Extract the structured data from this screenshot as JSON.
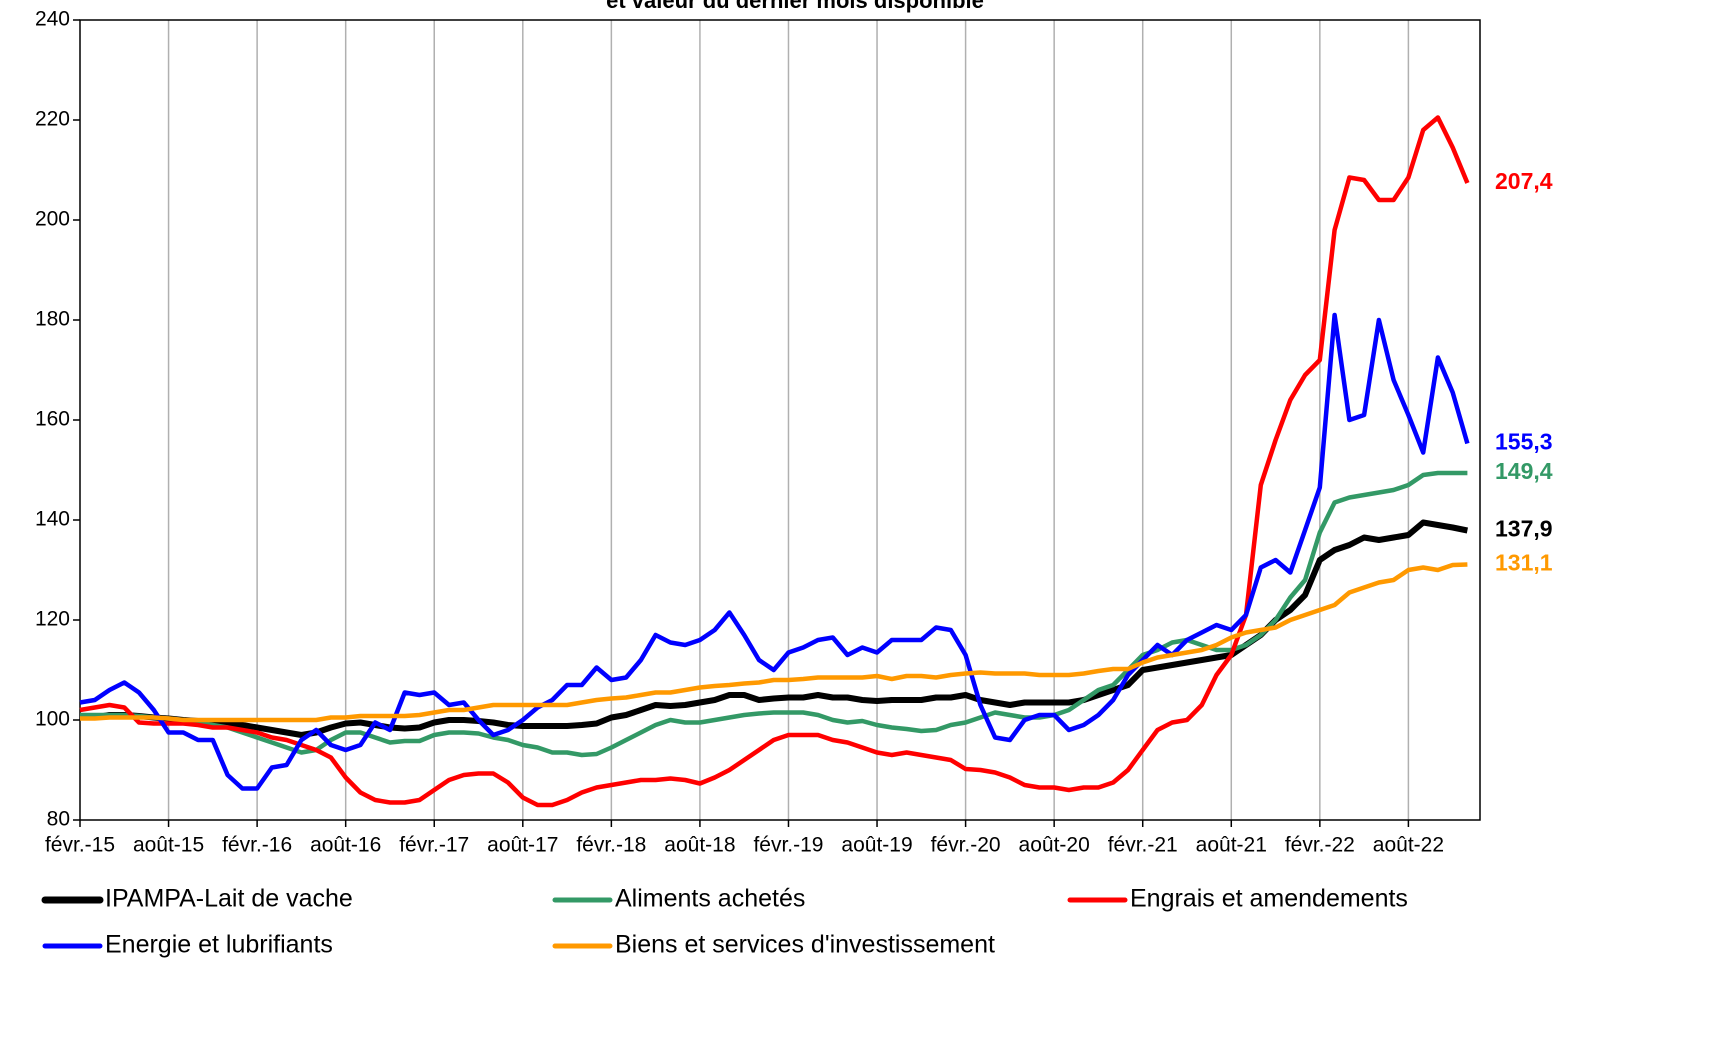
{
  "chart_data": {
    "type": "line",
    "title": "et valeur du dernier mois disponible",
    "categories": [
      "févr.-15",
      null,
      null,
      null,
      null,
      null,
      "août-15",
      null,
      null,
      null,
      null,
      null,
      "févr.-16",
      null,
      null,
      null,
      null,
      null,
      "août-16",
      null,
      null,
      null,
      null,
      null,
      "févr.-17",
      null,
      null,
      null,
      null,
      null,
      "août-17",
      null,
      null,
      null,
      null,
      null,
      "févr.-18",
      null,
      null,
      null,
      null,
      null,
      "août-18",
      null,
      null,
      null,
      null,
      null,
      "févr.-19",
      null,
      null,
      null,
      null,
      null,
      "août-19",
      null,
      null,
      null,
      null,
      null,
      "févr.-20",
      null,
      null,
      null,
      null,
      null,
      "août-20",
      null,
      null,
      null,
      null,
      null,
      "févr.-21",
      null,
      null,
      null,
      null,
      null,
      "août-21",
      null,
      null,
      null,
      null,
      null,
      "févr.-22",
      null,
      null,
      null,
      null,
      null,
      "août-22",
      null,
      null,
      null,
      null
    ],
    "ylim": [
      80,
      240
    ],
    "yticks": [
      80,
      100,
      120,
      140,
      160,
      180,
      200,
      220,
      240
    ],
    "grid": "x",
    "legend": "bottom",
    "series": [
      {
        "name": "IPAMPA-Lait de vache",
        "color": "#000000",
        "values": [
          100.5,
          100.5,
          101,
          101,
          100.8,
          100.5,
          100.3,
          100,
          99.8,
          99.5,
          99.3,
          99,
          98.5,
          98,
          97.5,
          97,
          97.5,
          98.5,
          99.3,
          99.5,
          99,
          98.5,
          98.3,
          98.5,
          99.5,
          100,
          100,
          99.8,
          99.5,
          99,
          98.8,
          98.8,
          98.8,
          98.8,
          99,
          99.3,
          100.5,
          101,
          102,
          103,
          102.8,
          103,
          103.5,
          104,
          105,
          105,
          104,
          104.3,
          104.5,
          104.5,
          105,
          104.5,
          104.5,
          104,
          103.8,
          104,
          104,
          104,
          104.5,
          104.5,
          105,
          104,
          103.5,
          103,
          103.5,
          103.5,
          103.5,
          103.5,
          104,
          105,
          106,
          107,
          110,
          110.5,
          111,
          111.5,
          112,
          112.5,
          113,
          115,
          117,
          120,
          122,
          125,
          132,
          134,
          135,
          136.5,
          136,
          136.5,
          137,
          139.5,
          139,
          138.5,
          137.9
        ],
        "value_labels": [
          null,
          null,
          null,
          null,
          null,
          null,
          null,
          null,
          null,
          null,
          null,
          null,
          null,
          null,
          null,
          null,
          null,
          null,
          null,
          null,
          null,
          null,
          null,
          null,
          null,
          null,
          null,
          null,
          null,
          null,
          null,
          null,
          null,
          null,
          null,
          null,
          null,
          null,
          null,
          null,
          null,
          null,
          null,
          null,
          null,
          null,
          null,
          null,
          null,
          null,
          null,
          null,
          null,
          null,
          null,
          null,
          null,
          null,
          null,
          null,
          null,
          null,
          null,
          null,
          null,
          null,
          null,
          null,
          null,
          null,
          null,
          null,
          null,
          null,
          null,
          null,
          null,
          null,
          null,
          null,
          null,
          null,
          null,
          null,
          null,
          null,
          null,
          null,
          null,
          null,
          null,
          null,
          null,
          null,
          "137,9"
        ]
      },
      {
        "name": "Aliments achetés",
        "color": "#339966",
        "values": [
          101,
          101,
          101,
          101,
          100.8,
          100.5,
          100.3,
          100,
          99.5,
          99,
          98.5,
          97.5,
          96.5,
          95.5,
          94.5,
          93.5,
          94,
          96,
          97.5,
          97.5,
          96.5,
          95.5,
          95.8,
          95.8,
          97,
          97.5,
          97.5,
          97.3,
          96.5,
          96,
          95,
          94.5,
          93.5,
          93.5,
          93,
          93.2,
          94.5,
          96,
          97.5,
          99,
          100,
          99.5,
          99.5,
          100,
          100.5,
          101,
          101.3,
          101.5,
          101.5,
          101.5,
          101,
          100,
          99.5,
          99.8,
          99,
          98.5,
          98.2,
          97.8,
          98,
          99,
          99.5,
          100.5,
          101.5,
          101,
          100.5,
          100.5,
          101,
          102,
          104,
          106,
          107,
          110,
          113,
          114,
          115.5,
          116,
          115,
          114,
          114,
          115,
          117,
          120,
          124.5,
          128,
          137.5,
          143.5,
          144.5,
          145,
          145.5,
          146,
          147,
          149,
          149.4,
          149.4,
          149.4
        ],
        "value_labels": [
          null,
          null,
          null,
          null,
          null,
          null,
          null,
          null,
          null,
          null,
          null,
          null,
          null,
          null,
          null,
          null,
          null,
          null,
          null,
          null,
          null,
          null,
          null,
          null,
          null,
          null,
          null,
          null,
          null,
          null,
          null,
          null,
          null,
          null,
          null,
          null,
          null,
          null,
          null,
          null,
          null,
          null,
          null,
          null,
          null,
          null,
          null,
          null,
          null,
          null,
          null,
          null,
          null,
          null,
          null,
          null,
          null,
          null,
          null,
          null,
          null,
          null,
          null,
          null,
          null,
          null,
          null,
          null,
          null,
          null,
          null,
          null,
          null,
          null,
          null,
          null,
          null,
          null,
          null,
          null,
          null,
          null,
          null,
          null,
          null,
          null,
          null,
          null,
          null,
          null,
          null,
          null,
          null,
          null,
          "149,4"
        ]
      },
      {
        "name": "Engrais et amendements",
        "color": "#ff0000",
        "values": [
          102,
          102.5,
          103,
          102.5,
          99.5,
          99.3,
          99.3,
          99.3,
          99,
          98.5,
          98.5,
          98,
          97.5,
          96.5,
          96,
          95,
          94,
          92.5,
          88.5,
          85.5,
          84,
          83.5,
          83.5,
          84,
          86,
          88,
          89,
          89.3,
          89.3,
          87.5,
          84.5,
          83,
          83,
          84,
          85.5,
          86.5,
          87,
          87.5,
          88,
          88,
          88.3,
          88,
          87.3,
          88.5,
          90,
          92,
          94,
          96,
          97,
          97,
          97,
          96,
          95.5,
          94.5,
          93.5,
          93,
          93.5,
          93,
          92.5,
          92,
          90.2,
          90,
          89.5,
          88.5,
          87,
          86.5,
          86.5,
          86,
          86.5,
          86.5,
          87.5,
          90,
          94,
          98,
          99.5,
          100,
          103,
          109,
          113,
          121,
          147,
          156,
          164,
          169,
          172,
          198,
          208.5,
          208,
          204,
          204,
          208.5,
          218,
          220.5,
          214.5,
          207.4
        ],
        "value_labels": [
          null,
          null,
          null,
          null,
          null,
          null,
          null,
          null,
          null,
          null,
          null,
          null,
          null,
          null,
          null,
          null,
          null,
          null,
          null,
          null,
          null,
          null,
          null,
          null,
          null,
          null,
          null,
          null,
          null,
          null,
          null,
          null,
          null,
          null,
          null,
          null,
          null,
          null,
          null,
          null,
          null,
          null,
          null,
          null,
          null,
          null,
          null,
          null,
          null,
          null,
          null,
          null,
          null,
          null,
          null,
          null,
          null,
          null,
          null,
          null,
          null,
          null,
          null,
          null,
          null,
          null,
          null,
          null,
          null,
          null,
          null,
          null,
          null,
          null,
          null,
          null,
          null,
          null,
          null,
          null,
          null,
          null,
          null,
          null,
          null,
          null,
          null,
          null,
          null,
          null,
          null,
          null,
          null,
          null,
          "207,4"
        ]
      },
      {
        "name": "Energie et lubrifiants",
        "color": "#0000ff",
        "values": [
          103.5,
          104,
          106,
          107.5,
          105.5,
          102,
          97.5,
          97.5,
          96,
          96,
          89,
          86.3,
          86.3,
          90.5,
          91,
          96,
          98,
          95,
          94,
          95,
          99.5,
          98,
          105.5,
          105,
          105.5,
          103,
          103.5,
          100,
          97,
          98,
          100,
          102.5,
          104,
          107,
          107,
          110.5,
          108,
          108.5,
          112,
          117,
          115.5,
          115,
          116,
          118,
          121.5,
          117,
          112,
          110,
          113.5,
          114.5,
          116,
          116.5,
          113,
          114.5,
          113.5,
          116,
          116,
          116,
          118.5,
          118,
          113,
          103,
          96.5,
          96,
          100,
          101,
          101,
          98,
          99,
          101,
          104,
          109,
          112,
          115,
          113,
          116,
          117.5,
          119,
          118,
          121,
          130.5,
          132,
          129.5,
          138,
          146.5,
          181,
          160,
          161,
          180,
          168,
          161,
          153.5,
          172.5,
          165.5,
          155.3
        ],
        "value_labels": [
          null,
          null,
          null,
          null,
          null,
          null,
          null,
          null,
          null,
          null,
          null,
          null,
          null,
          null,
          null,
          null,
          null,
          null,
          null,
          null,
          null,
          null,
          null,
          null,
          null,
          null,
          null,
          null,
          null,
          null,
          null,
          null,
          null,
          null,
          null,
          null,
          null,
          null,
          null,
          null,
          null,
          null,
          null,
          null,
          null,
          null,
          null,
          null,
          null,
          null,
          null,
          null,
          null,
          null,
          null,
          null,
          null,
          null,
          null,
          null,
          null,
          null,
          null,
          null,
          null,
          null,
          null,
          null,
          null,
          null,
          null,
          null,
          null,
          null,
          null,
          null,
          null,
          null,
          null,
          null,
          null,
          null,
          null,
          null,
          null,
          null,
          null,
          null,
          null,
          null,
          null,
          null,
          null,
          null,
          "155,3"
        ]
      },
      {
        "name": "Biens et services d'investissement",
        "color": "#ff9900",
        "values": [
          100.3,
          100.3,
          100.5,
          100.5,
          100.5,
          100.5,
          100.3,
          100,
          100,
          100,
          100,
          100,
          100,
          100,
          100,
          100,
          100,
          100.5,
          100.5,
          100.8,
          100.8,
          100.8,
          100.8,
          101,
          101.5,
          102,
          102,
          102.5,
          103,
          103,
          103,
          103,
          103,
          103,
          103.5,
          104,
          104.3,
          104.5,
          105,
          105.5,
          105.5,
          106,
          106.5,
          106.8,
          107,
          107.3,
          107.5,
          108,
          108,
          108.2,
          108.5,
          108.5,
          108.5,
          108.5,
          108.8,
          108.2,
          108.8,
          108.8,
          108.5,
          109,
          109.3,
          109.5,
          109.3,
          109.3,
          109.3,
          109,
          109,
          109,
          109.3,
          109.8,
          110.2,
          110.2,
          111.5,
          112.5,
          113,
          113.5,
          114,
          115,
          116.5,
          117.5,
          118,
          118.5,
          120,
          121,
          122,
          123,
          125.5,
          126.5,
          127.5,
          128,
          130,
          130.5,
          130,
          131,
          131.1
        ],
        "value_labels": [
          null,
          null,
          null,
          null,
          null,
          null,
          null,
          null,
          null,
          null,
          null,
          null,
          null,
          null,
          null,
          null,
          null,
          null,
          null,
          null,
          null,
          null,
          null,
          null,
          null,
          null,
          null,
          null,
          null,
          null,
          null,
          null,
          null,
          null,
          null,
          null,
          null,
          null,
          null,
          null,
          null,
          null,
          null,
          null,
          null,
          null,
          null,
          null,
          null,
          null,
          null,
          null,
          null,
          null,
          null,
          null,
          null,
          null,
          null,
          null,
          null,
          null,
          null,
          null,
          null,
          null,
          null,
          null,
          null,
          null,
          null,
          null,
          null,
          null,
          null,
          null,
          null,
          null,
          null,
          null,
          null,
          null,
          null,
          null,
          null,
          null,
          null,
          null,
          null,
          null,
          null,
          null,
          null,
          null,
          "131,1"
        ]
      }
    ]
  }
}
